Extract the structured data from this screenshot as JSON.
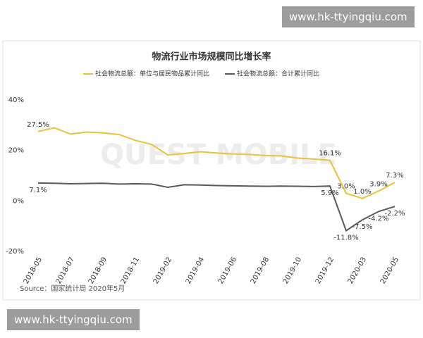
{
  "watermarks": [
    "www.hk-ttyingqiu.com",
    "www.hk-ttyingqiu.com"
  ],
  "chart_data": {
    "type": "line",
    "title": "物流行业市场规模同比增长率",
    "source": "Source：国家统计局 2020年5月",
    "watermark": "QUEST MOBILE",
    "categories": [
      "2018-05",
      null,
      "2018-07",
      null,
      "2018-09",
      null,
      "2018-11",
      null,
      "2019-02",
      null,
      "2019-04",
      null,
      "2019-06",
      null,
      "2019-08",
      null,
      "2019-10",
      null,
      "2019-12",
      null,
      "2020-03",
      null,
      "2020-05"
    ],
    "series": [
      {
        "name": "社会物流总额：单位与居民物品累计同比",
        "color": "#e8c23a",
        "values": [
          27.5,
          29,
          26.5,
          27.3,
          27,
          26.3,
          24,
          22.4,
          18.2,
          18.8,
          19.5,
          19,
          18.6,
          18.4,
          18,
          17.8,
          17,
          16.6,
          16.1,
          3.0,
          1.0,
          3.9,
          7.3
        ],
        "value_labels": [
          "27.5%",
          null,
          null,
          null,
          null,
          null,
          null,
          null,
          null,
          null,
          null,
          null,
          null,
          null,
          null,
          null,
          null,
          null,
          "16.1%",
          "3.0%",
          "1.0%",
          "3.9%",
          "7.3%"
        ]
      },
      {
        "name": "社会物流总额：合计累计同比",
        "color": "#555a60",
        "values": [
          7.1,
          7,
          6.8,
          6.9,
          7,
          6.7,
          6.8,
          6.7,
          5.4,
          6.4,
          6.3,
          6.1,
          6,
          5.9,
          5.8,
          5.9,
          5.8,
          5.7,
          5.9,
          -11.8,
          -7.5,
          -4.2,
          -2.2
        ],
        "value_labels": [
          "7.1%",
          null,
          null,
          null,
          null,
          null,
          null,
          null,
          null,
          null,
          null,
          null,
          null,
          null,
          null,
          null,
          null,
          null,
          "5.9%",
          "-11.8%",
          "-7.5%",
          "-4.2%",
          "-2.2%"
        ]
      }
    ],
    "ylim": [
      -20,
      40
    ],
    "yticks": [
      {
        "value": -20,
        "label": "-20%"
      },
      {
        "value": 0,
        "label": "0%"
      },
      {
        "value": 20,
        "label": "20%"
      },
      {
        "value": 40,
        "label": "40%"
      }
    ],
    "grid": false
  }
}
